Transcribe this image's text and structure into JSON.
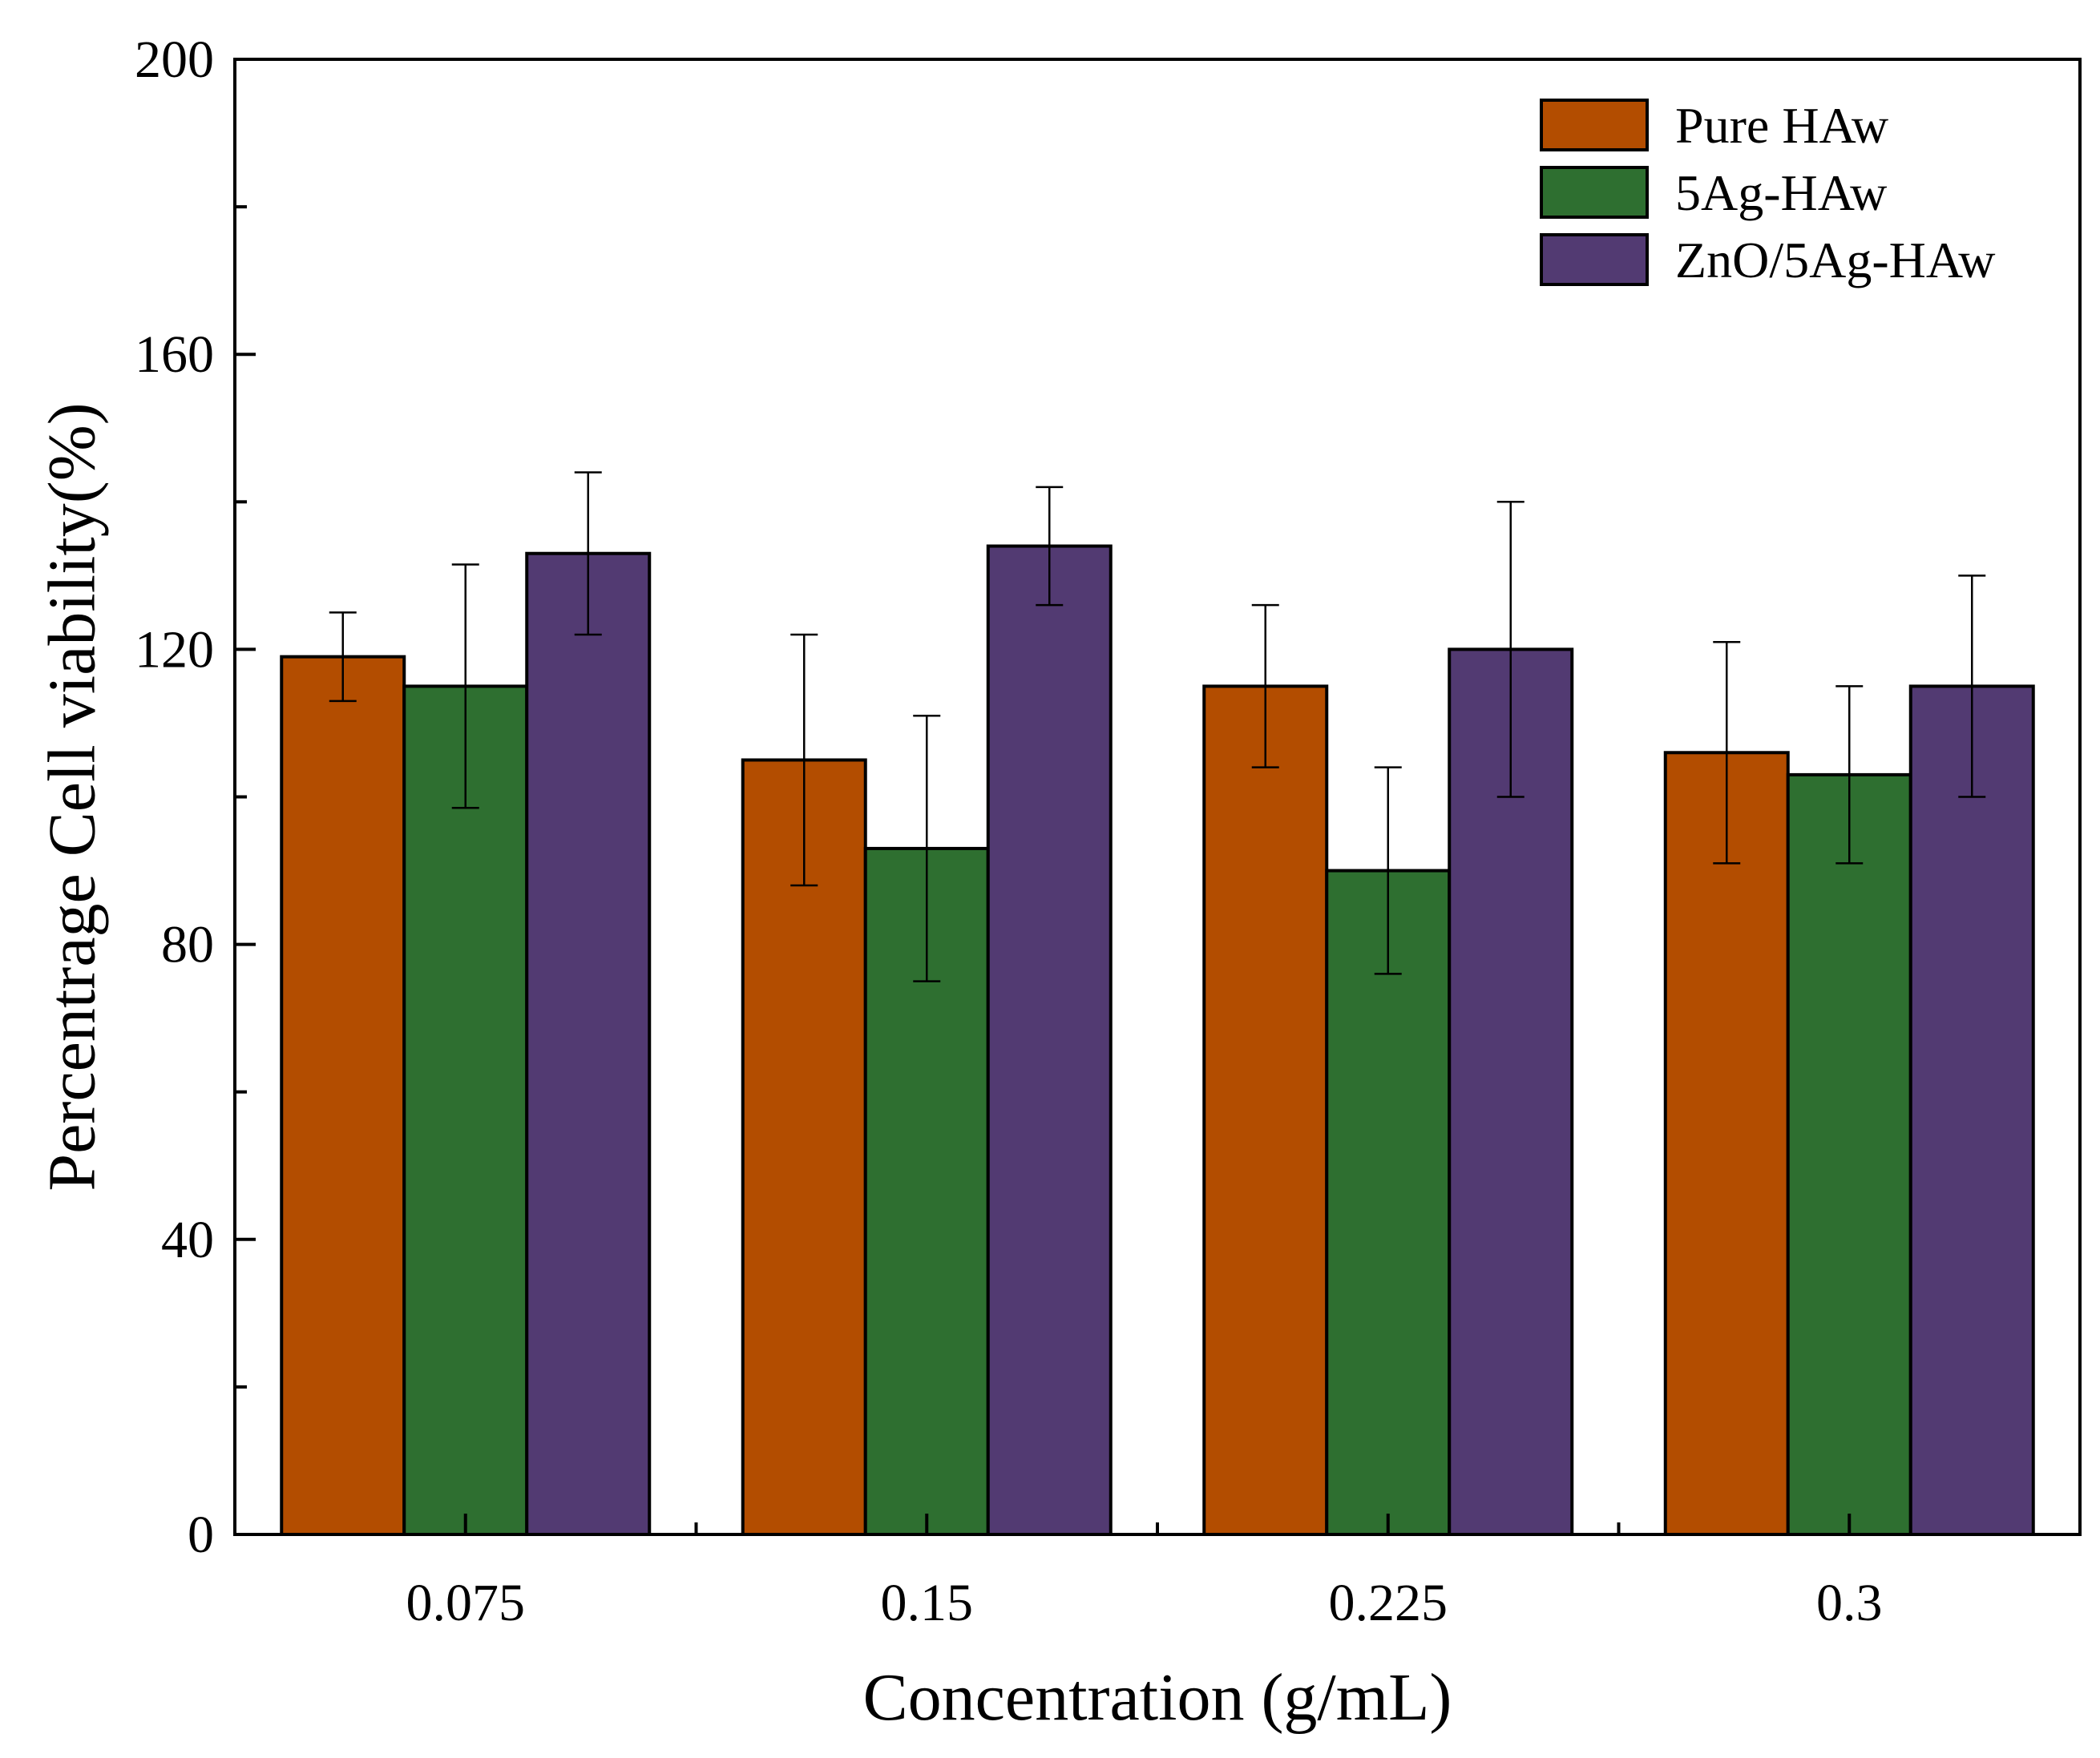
{
  "chart_data": {
    "type": "bar",
    "title": "",
    "xlabel": "Concentration (g/mL)",
    "ylabel": "Percentrage Cell viability(%)",
    "categories": [
      "0.075",
      "0.15",
      "0.225",
      "0.3"
    ],
    "ylim": [
      0,
      200
    ],
    "yticks": [
      0,
      40,
      80,
      120,
      160,
      200
    ],
    "y_minor_step": 20,
    "grid": false,
    "legend_position": "top-right",
    "series": [
      {
        "name": "Pure HAw",
        "color": "#B34D00",
        "values": [
          119,
          105,
          115,
          106
        ],
        "errors": [
          6,
          17,
          11,
          15
        ]
      },
      {
        "name": "5Ag-HAw",
        "color": "#2E6F30",
        "values": [
          115,
          93,
          90,
          103
        ],
        "errors": [
          16.5,
          18,
          14,
          12
        ]
      },
      {
        "name": "ZnO/5Ag-HAw",
        "color": "#523A72",
        "values": [
          133,
          134,
          120,
          115
        ],
        "errors": [
          11,
          8,
          20,
          15
        ]
      }
    ]
  }
}
